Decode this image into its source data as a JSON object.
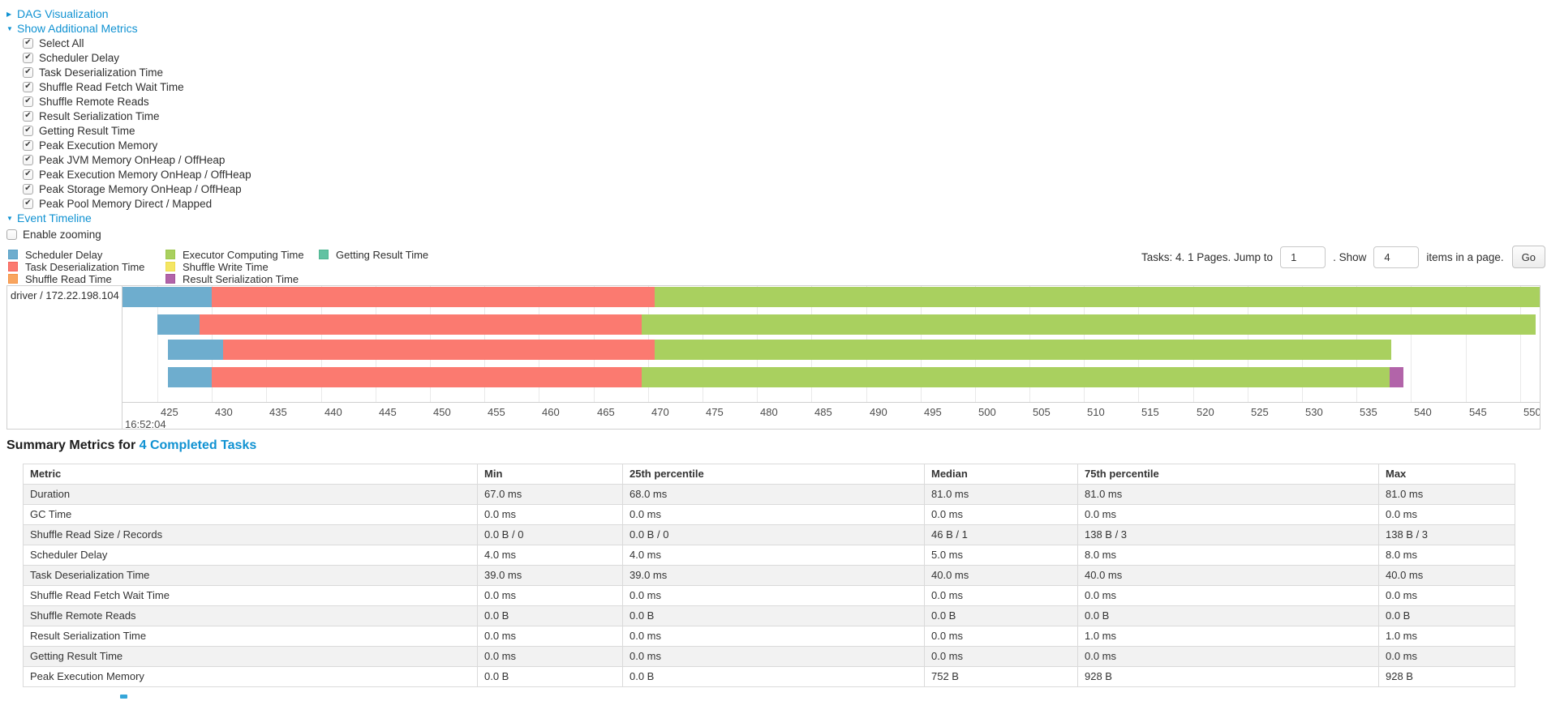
{
  "colors": {
    "link": "#1092d2",
    "scheduler_delay": {
      "fill": "#6EADCE",
      "border": "#58A1C8"
    },
    "task_deserialization": {
      "fill": "#FB7A70",
      "border": "#F4655B"
    },
    "shuffle_read": {
      "fill": "#F8A55F",
      "border": "#F69445"
    },
    "executor_computing": {
      "fill": "#A9D05F",
      "border": "#9CC74C"
    },
    "shuffle_write": {
      "fill": "#F4E663",
      "border": "#EDDC4E"
    },
    "result_serialization": {
      "fill": "#B264A9",
      "border": "#A4549B"
    },
    "getting_result": {
      "fill": "#62C2A2",
      "border": "#4FB692"
    }
  },
  "controls": {
    "dag_toggle": {
      "label": "DAG Visualization",
      "state": "collapsed"
    },
    "metrics_toggle": {
      "label": "Show Additional Metrics",
      "state": "expanded"
    },
    "metric_options": [
      {
        "label": "Select All",
        "checked": true
      },
      {
        "label": "Scheduler Delay",
        "checked": true
      },
      {
        "label": "Task Deserialization Time",
        "checked": true
      },
      {
        "label": "Shuffle Read Fetch Wait Time",
        "checked": true
      },
      {
        "label": "Shuffle Remote Reads",
        "checked": true
      },
      {
        "label": "Result Serialization Time",
        "checked": true
      },
      {
        "label": "Getting Result Time",
        "checked": true
      },
      {
        "label": "Peak Execution Memory",
        "checked": true
      },
      {
        "label": "Peak JVM Memory OnHeap / OffHeap",
        "checked": true
      },
      {
        "label": "Peak Execution Memory OnHeap / OffHeap",
        "checked": true
      },
      {
        "label": "Peak Storage Memory OnHeap / OffHeap",
        "checked": true
      },
      {
        "label": "Peak Pool Memory Direct / Mapped",
        "checked": true
      }
    ],
    "timeline_toggle": {
      "label": "Event Timeline",
      "state": "expanded"
    },
    "enable_zooming": {
      "label": "Enable zooming",
      "checked": false
    }
  },
  "legend": {
    "columns": [
      [
        {
          "label": "Scheduler Delay",
          "key": "scheduler_delay"
        },
        {
          "label": "Task Deserialization Time",
          "key": "task_deserialization"
        },
        {
          "label": "Shuffle Read Time",
          "key": "shuffle_read"
        }
      ],
      [
        {
          "label": "Executor Computing Time",
          "key": "executor_computing"
        },
        {
          "label": "Shuffle Write Time",
          "key": "shuffle_write"
        },
        {
          "label": "Result Serialization Time",
          "key": "result_serialization"
        }
      ],
      [
        {
          "label": "Getting Result Time",
          "key": "getting_result"
        }
      ]
    ]
  },
  "pagination": {
    "prefix": "Tasks: 4. 1 Pages. Jump to",
    "jump_value": "1",
    "mid": ". Show",
    "show_value": "4",
    "suffix": "items in a page.",
    "go_label": "Go"
  },
  "chart_data": {
    "type": "timeline",
    "group_label": "driver / 172.22.198.104",
    "axis": {
      "min": 421.8,
      "max": 551.8,
      "ticks": [
        425,
        430,
        435,
        440,
        445,
        450,
        455,
        460,
        465,
        470,
        475,
        480,
        485,
        490,
        495,
        500,
        505,
        510,
        515,
        520,
        525,
        530,
        535,
        540,
        545,
        550
      ],
      "major_label": "16:52:04"
    },
    "bars": [
      {
        "segments": [
          {
            "key": "scheduler_delay",
            "start": 421.8,
            "end": 430.0
          },
          {
            "key": "task_deserialization",
            "start": 430.0,
            "end": 470.6
          },
          {
            "key": "executor_computing",
            "start": 470.6,
            "end": 551.8
          }
        ]
      },
      {
        "segments": [
          {
            "key": "scheduler_delay",
            "start": 425.0,
            "end": 428.9
          },
          {
            "key": "task_deserialization",
            "start": 428.9,
            "end": 469.4
          },
          {
            "key": "executor_computing",
            "start": 469.4,
            "end": 551.4
          }
        ]
      },
      {
        "segments": [
          {
            "key": "scheduler_delay",
            "start": 426.0,
            "end": 431.0
          },
          {
            "key": "task_deserialization",
            "start": 431.0,
            "end": 470.6
          },
          {
            "key": "executor_computing",
            "start": 470.6,
            "end": 538.2
          }
        ]
      },
      {
        "segments": [
          {
            "key": "scheduler_delay",
            "start": 426.0,
            "end": 430.0
          },
          {
            "key": "task_deserialization",
            "start": 430.0,
            "end": 469.4
          },
          {
            "key": "executor_computing",
            "start": 469.4,
            "end": 538.0
          },
          {
            "key": "result_serialization",
            "start": 538.0,
            "end": 539.3
          }
        ]
      }
    ]
  },
  "summary": {
    "title_prefix": "Summary Metrics for ",
    "title_link": "4 Completed Tasks",
    "table": {
      "headers": [
        "Metric",
        "Min",
        "25th percentile",
        "Median",
        "75th percentile",
        "Max"
      ],
      "rows": [
        [
          "Duration",
          "67.0 ms",
          "68.0 ms",
          "81.0 ms",
          "81.0 ms",
          "81.0 ms"
        ],
        [
          "GC Time",
          "0.0 ms",
          "0.0 ms",
          "0.0 ms",
          "0.0 ms",
          "0.0 ms"
        ],
        [
          "Shuffle Read Size / Records",
          "0.0 B / 0",
          "0.0 B / 0",
          "46 B / 1",
          "138 B / 3",
          "138 B / 3"
        ],
        [
          "Scheduler Delay",
          "4.0 ms",
          "4.0 ms",
          "5.0 ms",
          "8.0 ms",
          "8.0 ms"
        ],
        [
          "Task Deserialization Time",
          "39.0 ms",
          "39.0 ms",
          "40.0 ms",
          "40.0 ms",
          "40.0 ms"
        ],
        [
          "Shuffle Read Fetch Wait Time",
          "0.0 ms",
          "0.0 ms",
          "0.0 ms",
          "0.0 ms",
          "0.0 ms"
        ],
        [
          "Shuffle Remote Reads",
          "0.0 B",
          "0.0 B",
          "0.0 B",
          "0.0 B",
          "0.0 B"
        ],
        [
          "Result Serialization Time",
          "0.0 ms",
          "0.0 ms",
          "0.0 ms",
          "1.0 ms",
          "1.0 ms"
        ],
        [
          "Getting Result Time",
          "0.0 ms",
          "0.0 ms",
          "0.0 ms",
          "0.0 ms",
          "0.0 ms"
        ],
        [
          "Peak Execution Memory",
          "0.0 B",
          "0.0 B",
          "752 B",
          "928 B",
          "928 B"
        ]
      ]
    }
  }
}
